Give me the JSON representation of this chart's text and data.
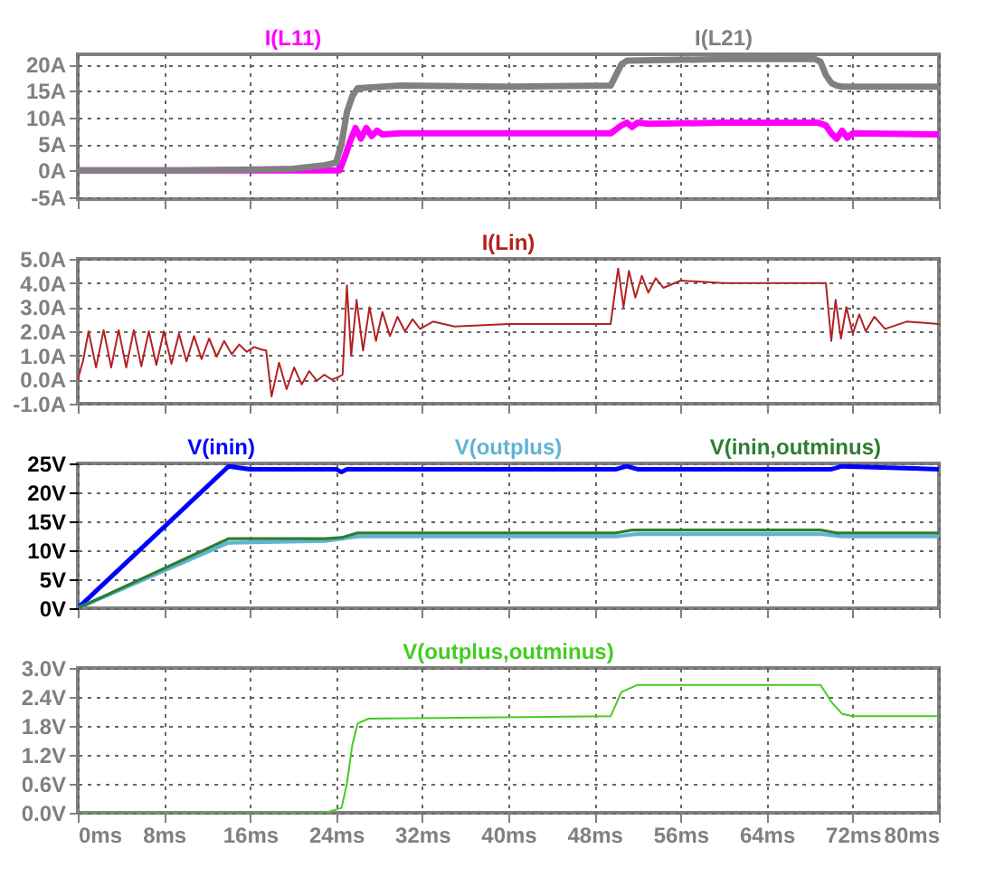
{
  "chart_data": [
    {
      "type": "line",
      "xlim": [
        0,
        80
      ],
      "xticks": [
        {
          "value": 0,
          "label": null
        },
        {
          "value": 8,
          "label": null
        },
        {
          "value": 16,
          "label": null
        },
        {
          "value": 24,
          "label": null
        },
        {
          "value": 32,
          "label": null
        },
        {
          "value": 40,
          "label": null
        },
        {
          "value": 48,
          "label": null
        },
        {
          "value": 56,
          "label": null
        },
        {
          "value": 64,
          "label": null
        },
        {
          "value": 72,
          "label": null
        },
        {
          "value": 80,
          "label": null
        }
      ],
      "ylim": [
        -5.4,
        21.9
      ],
      "yticks": [
        {
          "value": -5,
          "label": "-5A"
        },
        {
          "value": 0,
          "label": "0A"
        },
        {
          "value": 5,
          "label": "5A"
        },
        {
          "value": 10,
          "label": "10A"
        },
        {
          "value": 15,
          "label": "15A"
        },
        {
          "value": 20,
          "label": "20A"
        }
      ],
      "grid": true,
      "tick_labels": "y",
      "series": [
        {
          "name": "I(L11)",
          "color": "#ff00ff",
          "x": [
            0,
            10,
            20,
            24.3,
            24.8,
            25.3,
            25.8,
            26.3,
            26.8,
            27.3,
            27.8,
            28.3,
            30,
            40,
            49.5,
            50.5,
            51,
            51.5,
            52,
            53,
            60,
            68.8,
            69.5,
            70,
            70.5,
            71,
            71.5,
            72,
            80
          ],
          "values": [
            0,
            0,
            0,
            0,
            2.5,
            5.5,
            8,
            6,
            8,
            6.5,
            7.5,
            6.8,
            7,
            7,
            7,
            8.5,
            9,
            8.2,
            9,
            8.8,
            9,
            9,
            8.5,
            7,
            6,
            7.5,
            6.2,
            7,
            6.8
          ]
        },
        {
          "name": "I(L21)",
          "color": "#808080",
          "x": [
            0,
            10,
            20,
            23,
            24,
            24.5,
            25,
            25.5,
            26,
            30,
            40,
            49.5,
            50,
            50.5,
            51,
            60,
            68.5,
            69,
            69.5,
            70,
            70.5,
            71,
            80
          ],
          "values": [
            0,
            0,
            0.3,
            1,
            1.5,
            5,
            11,
            14,
            15.5,
            16,
            15.8,
            16,
            18,
            20,
            20.7,
            21,
            21,
            20.5,
            18,
            16.5,
            16,
            15.8,
            15.8
          ]
        }
      ]
    },
    {
      "type": "line",
      "xlim": [
        0,
        80
      ],
      "xticks": [
        {
          "value": 0,
          "label": null
        },
        {
          "value": 8,
          "label": null
        },
        {
          "value": 16,
          "label": null
        },
        {
          "value": 24,
          "label": null
        },
        {
          "value": 32,
          "label": null
        },
        {
          "value": 40,
          "label": null
        },
        {
          "value": 48,
          "label": null
        },
        {
          "value": 56,
          "label": null
        },
        {
          "value": 64,
          "label": null
        },
        {
          "value": 72,
          "label": null
        },
        {
          "value": 80,
          "label": null
        }
      ],
      "ylim": [
        -1,
        5
      ],
      "yticks": [
        {
          "value": -1,
          "label": "-1.0A"
        },
        {
          "value": 0,
          "label": "0.0A"
        },
        {
          "value": 1,
          "label": "1.0A"
        },
        {
          "value": 2,
          "label": "2.0A"
        },
        {
          "value": 3,
          "label": "3.0A"
        },
        {
          "value": 4,
          "label": "4.0A"
        },
        {
          "value": 5,
          "label": "5.0A"
        }
      ],
      "grid": true,
      "tick_labels": "y",
      "series": [
        {
          "name": "I(Lin)",
          "color": "#b22222",
          "x": [
            0,
            0.5,
            1,
            1.7,
            2.4,
            3.1,
            3.8,
            4.5,
            5.2,
            5.9,
            6.6,
            7.3,
            8,
            8.7,
            9.4,
            10.1,
            10.8,
            11.5,
            12.2,
            12.9,
            13.6,
            14.3,
            15,
            15.7,
            16.4,
            17,
            17.5,
            18,
            18.7,
            19.4,
            20.1,
            20.8,
            21.5,
            22.2,
            22.9,
            23.6,
            24.2,
            24.6,
            25,
            25.4,
            25.9,
            26.5,
            27.1,
            27.7,
            28.3,
            29,
            29.7,
            30.4,
            31.1,
            31.8,
            33,
            35,
            40,
            45,
            49.5,
            50.2,
            50.7,
            51.2,
            51.8,
            52.4,
            53,
            53.7,
            54.4,
            56,
            60,
            65,
            69.5,
            70,
            70.4,
            70.9,
            71.4,
            72,
            72.6,
            73.2,
            74,
            75,
            77,
            80
          ],
          "values": [
            0,
            0.8,
            2.0,
            0.5,
            2.05,
            0.5,
            2.05,
            0.5,
            2.05,
            0.55,
            2.0,
            0.6,
            2.0,
            0.65,
            1.9,
            0.75,
            1.8,
            0.85,
            1.7,
            0.95,
            1.6,
            1.05,
            1.45,
            1.15,
            1.35,
            1.25,
            1.2,
            -0.7,
            0.7,
            -0.4,
            0.5,
            -0.2,
            0.35,
            -0.05,
            0.2,
            0.0,
            0.1,
            0.2,
            3.9,
            1.0,
            3.3,
            1.2,
            3.0,
            1.6,
            2.8,
            1.8,
            2.6,
            2.0,
            2.5,
            2.1,
            2.4,
            2.2,
            2.3,
            2.3,
            2.3,
            4.6,
            3.0,
            4.5,
            3.4,
            4.3,
            3.6,
            4.2,
            3.8,
            4.1,
            4.0,
            4.0,
            4.0,
            1.6,
            3.3,
            1.7,
            3.0,
            1.9,
            2.7,
            2.0,
            2.6,
            2.1,
            2.4,
            2.3
          ]
        }
      ]
    },
    {
      "type": "line",
      "xlim": [
        0,
        80
      ],
      "xticks": [
        {
          "value": 0,
          "label": null
        },
        {
          "value": 8,
          "label": null
        },
        {
          "value": 16,
          "label": null
        },
        {
          "value": 24,
          "label": null
        },
        {
          "value": 32,
          "label": null
        },
        {
          "value": 40,
          "label": null
        },
        {
          "value": 48,
          "label": null
        },
        {
          "value": 56,
          "label": null
        },
        {
          "value": 64,
          "label": null
        },
        {
          "value": 72,
          "label": null
        },
        {
          "value": 80,
          "label": null
        }
      ],
      "ylim": [
        0,
        25
      ],
      "yticks": [
        {
          "value": 0,
          "label": "0V"
        },
        {
          "value": 5,
          "label": "5V"
        },
        {
          "value": 10,
          "label": "10V"
        },
        {
          "value": 15,
          "label": "15V"
        },
        {
          "value": 20,
          "label": "20V"
        },
        {
          "value": 25,
          "label": "25V"
        }
      ],
      "grid": true,
      "tick_labels": "y",
      "series": [
        {
          "name": "V(inin)",
          "color": "#0000ff",
          "x": [
            0,
            14,
            16,
            24,
            24.5,
            25,
            40,
            50,
            51,
            52,
            70,
            71,
            80
          ],
          "values": [
            0,
            24.5,
            24,
            24,
            23.5,
            24,
            24,
            24,
            24.5,
            24,
            24,
            24.5,
            24
          ]
        },
        {
          "name": "V(outplus)",
          "color": "#5fb4d4",
          "x": [
            0,
            14,
            23,
            26,
            50,
            52,
            69,
            71,
            80
          ],
          "values": [
            0,
            11.3,
            11.6,
            12.4,
            12.4,
            12.8,
            12.8,
            12.4,
            12.4
          ]
        },
        {
          "name": "V(inin,outminus)",
          "color": "#2e7d32",
          "x": [
            0,
            14,
            23,
            24.5,
            26,
            40,
            50,
            51.5,
            69,
            70.5,
            80
          ],
          "values": [
            0,
            12,
            12,
            12.2,
            13,
            13,
            13,
            13.5,
            13.5,
            13,
            13
          ]
        }
      ]
    },
    {
      "type": "line",
      "xlim": [
        0,
        80
      ],
      "xticks": [
        {
          "value": 0,
          "label": "0ms"
        },
        {
          "value": 8,
          "label": "8ms"
        },
        {
          "value": 16,
          "label": "16ms"
        },
        {
          "value": 24,
          "label": "24ms"
        },
        {
          "value": 32,
          "label": "32ms"
        },
        {
          "value": 40,
          "label": "40ms"
        },
        {
          "value": 48,
          "label": "48ms"
        },
        {
          "value": 56,
          "label": "56ms"
        },
        {
          "value": 64,
          "label": "64ms"
        },
        {
          "value": 72,
          "label": "72ms"
        },
        {
          "value": 80,
          "label": "80ms"
        }
      ],
      "ylim": [
        0,
        3
      ],
      "yticks": [
        {
          "value": 0,
          "label": "0.0V"
        },
        {
          "value": 0.6,
          "label": "0.6V"
        },
        {
          "value": 1.2,
          "label": "1.2V"
        },
        {
          "value": 1.8,
          "label": "1.8V"
        },
        {
          "value": 2.4,
          "label": "2.4V"
        },
        {
          "value": 3,
          "label": "3.0V"
        }
      ],
      "grid": true,
      "series": [
        {
          "name": "V(outplus,outminus)",
          "color": "#44cc22",
          "x": [
            0,
            23,
            24.5,
            25,
            25.5,
            26,
            27,
            49.5,
            50.5,
            52,
            69,
            70,
            71,
            72,
            80
          ],
          "values": [
            0,
            0,
            0.1,
            0.6,
            1.4,
            1.85,
            1.95,
            2.0,
            2.5,
            2.65,
            2.65,
            2.3,
            2.05,
            2.0,
            2.0
          ]
        }
      ]
    }
  ]
}
